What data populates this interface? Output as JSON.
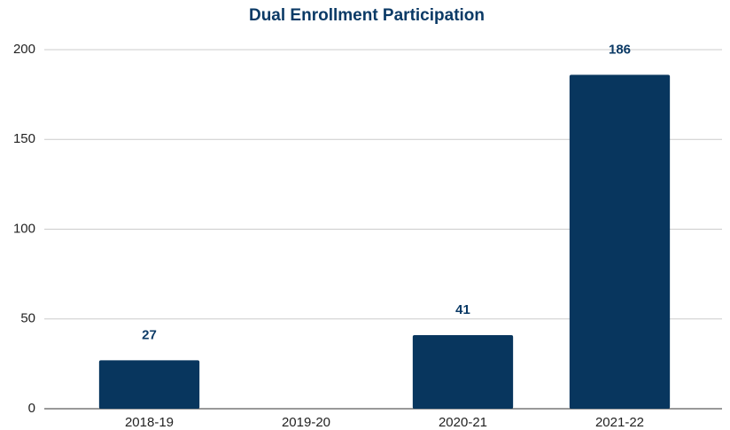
{
  "chart_data": {
    "type": "bar",
    "title": "Dual Enrollment Participation",
    "categories": [
      "2018-19",
      "2019-20",
      "2020-21",
      "2021-22"
    ],
    "values": [
      27,
      null,
      41,
      186
    ],
    "color": "#08365e",
    "ylim": [
      0,
      200
    ],
    "yticks": [
      0,
      50,
      100,
      150,
      200
    ],
    "grid": true
  }
}
